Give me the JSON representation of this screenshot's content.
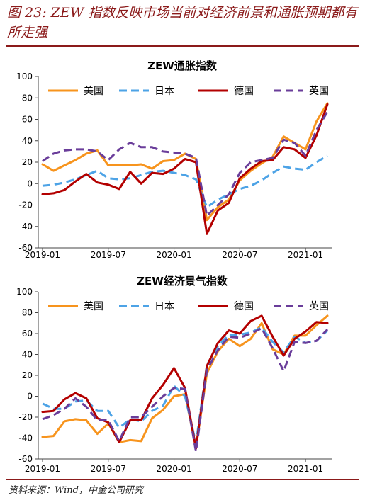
{
  "figure": {
    "title": "图 23: ZEW 指数反映市场当前对经济前景和通胀预期都有所走强",
    "source": "资料来源：Wind，中金公司研究"
  },
  "colors": {
    "title": "#8b1a1a",
    "美国": "#f7941d",
    "日本": "#4da3e6",
    "德国": "#b30000",
    "英国": "#6a3d9a"
  },
  "chart_data": [
    {
      "type": "line",
      "title": "ZEW通胀指数",
      "xlabel": "",
      "ylabel": "",
      "ylim": [
        -60,
        100
      ],
      "yticks": [
        -60,
        -40,
        -20,
        0,
        20,
        40,
        60,
        80,
        100
      ],
      "xticks": [
        "2019-01",
        "2019-07",
        "2020-01",
        "2020-07",
        "2021-01"
      ],
      "x": [
        "2019-01",
        "2019-02",
        "2019-03",
        "2019-04",
        "2019-05",
        "2019-06",
        "2019-07",
        "2019-08",
        "2019-09",
        "2019-10",
        "2019-11",
        "2019-12",
        "2020-01",
        "2020-02",
        "2020-03",
        "2020-04",
        "2020-05",
        "2020-06",
        "2020-07",
        "2020-08",
        "2020-09",
        "2020-10",
        "2020-11",
        "2020-12",
        "2021-01",
        "2021-02",
        "2021-03"
      ],
      "legend_position": "top",
      "series": [
        {
          "name": "美国",
          "style": "solid",
          "values": [
            18,
            12,
            17,
            22,
            28,
            31,
            17,
            17,
            17,
            18,
            14,
            21,
            22,
            28,
            23,
            -34,
            -22,
            -15,
            3,
            12,
            19,
            25,
            44,
            38,
            32,
            58,
            75
          ]
        },
        {
          "name": "日本",
          "style": "dash",
          "values": [
            -2,
            -1,
            1,
            4,
            8,
            12,
            5,
            4,
            5,
            8,
            11,
            12,
            10,
            8,
            4,
            -22,
            -15,
            -10,
            -5,
            -2,
            3,
            10,
            16,
            14,
            13,
            20,
            26
          ]
        },
        {
          "name": "德国",
          "style": "solid",
          "values": [
            -10,
            -9,
            -6,
            2,
            9,
            1,
            -1,
            -5,
            11,
            0,
            10,
            9,
            14,
            23,
            20,
            -47,
            -25,
            -18,
            5,
            14,
            21,
            22,
            34,
            32,
            24,
            45,
            74
          ]
        },
        {
          "name": "英国",
          "style": "dash",
          "values": [
            21,
            28,
            31,
            32,
            32,
            30,
            22,
            32,
            38,
            34,
            34,
            30,
            29,
            28,
            24,
            -30,
            -20,
            -10,
            10,
            20,
            22,
            24,
            41,
            38,
            26,
            50,
            67
          ]
        }
      ]
    },
    {
      "type": "line",
      "title": "ZEW经济景气指数",
      "xlabel": "",
      "ylabel": "",
      "ylim": [
        -60,
        100
      ],
      "yticks": [
        -60,
        -40,
        -20,
        0,
        20,
        40,
        60,
        80,
        100
      ],
      "xticks": [
        "2019-01",
        "2019-07",
        "2020-01",
        "2020-07",
        "2021-01"
      ],
      "x": [
        "2019-01",
        "2019-02",
        "2019-03",
        "2019-04",
        "2019-05",
        "2019-06",
        "2019-07",
        "2019-08",
        "2019-09",
        "2019-10",
        "2019-11",
        "2019-12",
        "2020-01",
        "2020-02",
        "2020-03",
        "2020-04",
        "2020-05",
        "2020-06",
        "2020-07",
        "2020-08",
        "2020-09",
        "2020-10",
        "2020-11",
        "2020-12",
        "2021-01",
        "2021-02",
        "2021-03"
      ],
      "legend_position": "top",
      "series": [
        {
          "name": "美国",
          "style": "solid",
          "values": [
            -39,
            -38,
            -24,
            -22,
            -23,
            -36,
            -26,
            -44,
            -42,
            -43,
            -21,
            -13,
            0,
            2,
            -49,
            22,
            43,
            55,
            48,
            55,
            70,
            45,
            40,
            58,
            58,
            68,
            77
          ]
        },
        {
          "name": "日本",
          "style": "dash",
          "values": [
            -7,
            -12,
            -12,
            -5,
            -4,
            -14,
            -14,
            -30,
            -22,
            -24,
            -14,
            -9,
            10,
            0,
            -45,
            30,
            48,
            59,
            59,
            61,
            66,
            52,
            42,
            57,
            51,
            53,
            63
          ]
        },
        {
          "name": "德国",
          "style": "solid",
          "values": [
            -15,
            -14,
            -3,
            3,
            -2,
            -21,
            -25,
            -44,
            -23,
            -23,
            -2,
            11,
            27,
            8,
            -50,
            29,
            51,
            63,
            60,
            72,
            77,
            57,
            39,
            55,
            62,
            71,
            70
          ]
        },
        {
          "name": "英国",
          "style": "dash",
          "values": [
            -22,
            -18,
            -12,
            -2,
            -10,
            -23,
            -23,
            -43,
            -20,
            -20,
            -10,
            0,
            8,
            7,
            -53,
            25,
            44,
            57,
            56,
            60,
            65,
            46,
            24,
            52,
            51,
            53,
            64
          ]
        }
      ]
    }
  ]
}
